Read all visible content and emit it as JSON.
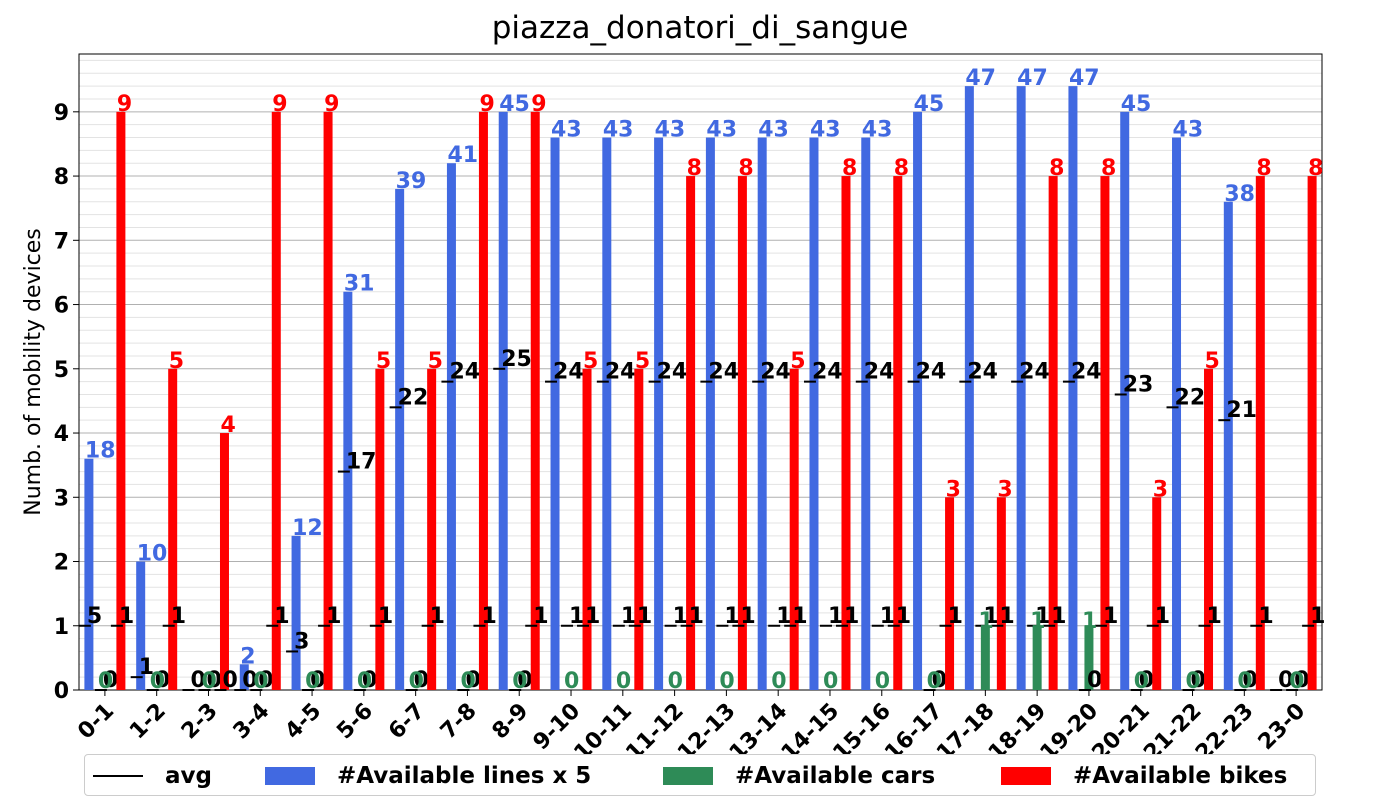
{
  "chart_data": {
    "type": "bar",
    "title": "piazza_donatori_di_sangue",
    "ylabel": "Numb. of mobility devices",
    "xlabel": "",
    "ylim": [
      0,
      9.9
    ],
    "yticks": [
      "0",
      "1",
      "2",
      "3",
      "4",
      "5",
      "6",
      "7",
      "8",
      "9"
    ],
    "categories": [
      "0-1",
      "1-2",
      "2-3",
      "3-4",
      "4-5",
      "5-6",
      "6-7",
      "7-8",
      "8-9",
      "9-10",
      "10-11",
      "11-12",
      "12-13",
      "13-14",
      "14-15",
      "15-16",
      "16-17",
      "17-18",
      "18-19",
      "19-20",
      "20-21",
      "21-22",
      "22-23",
      "23-0"
    ],
    "grid": true,
    "legend_position": "bottom",
    "series": [
      {
        "name": "#Available lines x 5",
        "color": "#4169e1",
        "values": [
          3.6,
          2.0,
          0,
          0.4,
          2.4,
          6.2,
          7.8,
          8.2,
          9.0,
          8.6,
          8.6,
          8.6,
          8.6,
          8.6,
          8.6,
          8.6,
          9.0,
          9.4,
          9.4,
          9.4,
          9.0,
          8.6,
          7.6,
          0
        ],
        "labels": [
          "18",
          "10",
          "",
          "2",
          "12",
          "31",
          "39",
          "41",
          "45",
          "43",
          "43",
          "43",
          "43",
          "43",
          "43",
          "43",
          "45",
          "47",
          "47",
          "47",
          "45",
          "43",
          "38",
          ""
        ],
        "avg": [
          5,
          1,
          0,
          0,
          3,
          17,
          22,
          24,
          25,
          24,
          24,
          24,
          24,
          24,
          24,
          24,
          24,
          24,
          24,
          24,
          23,
          22,
          21,
          0
        ]
      },
      {
        "name": "#Available cars",
        "color": "#2e8b57",
        "values": [
          0,
          0,
          0,
          0,
          0,
          0,
          0,
          0,
          0,
          0,
          0,
          0,
          0,
          0,
          0,
          0,
          0,
          1,
          1,
          1,
          0,
          0,
          0,
          0
        ],
        "labels": [
          "0",
          "0",
          "0",
          "0",
          "0",
          "0",
          "0",
          "0",
          "0",
          "0",
          "0",
          "0",
          "0",
          "0",
          "0",
          "0",
          "0",
          "1",
          "1",
          "1",
          "0",
          "0",
          "0",
          "0"
        ],
        "avg": [
          0,
          0,
          0,
          0,
          0,
          0,
          0,
          0,
          0,
          1,
          1,
          1,
          1,
          1,
          1,
          1,
          0,
          1,
          1,
          0,
          0,
          0,
          0,
          0
        ]
      },
      {
        "name": "#Available bikes",
        "color": "#ff0000",
        "values": [
          9,
          5,
          4,
          9,
          9,
          5,
          5,
          9,
          9,
          5,
          5,
          8,
          8,
          5,
          8,
          8,
          3,
          3,
          8,
          8,
          3,
          5,
          8,
          8
        ],
        "labels": [
          "9",
          "5",
          "4",
          "9",
          "9",
          "5",
          "5",
          "9",
          "9",
          "5",
          "5",
          "8",
          "8",
          "5",
          "8",
          "8",
          "3",
          "3",
          "8",
          "8",
          "3",
          "5",
          "8",
          "8"
        ],
        "avg": [
          1,
          1,
          0,
          1,
          1,
          1,
          1,
          1,
          1,
          1,
          1,
          1,
          1,
          1,
          1,
          1,
          1,
          1,
          1,
          1,
          1,
          1,
          1,
          1
        ]
      }
    ],
    "legend": [
      {
        "label": "avg",
        "kind": "line",
        "color": "#000000"
      },
      {
        "label": "#Available lines x 5",
        "kind": "box",
        "color": "#4169e1"
      },
      {
        "label": "#Available cars",
        "kind": "box",
        "color": "#2e8b57"
      },
      {
        "label": "#Available bikes",
        "kind": "box",
        "color": "#ff0000"
      }
    ]
  }
}
